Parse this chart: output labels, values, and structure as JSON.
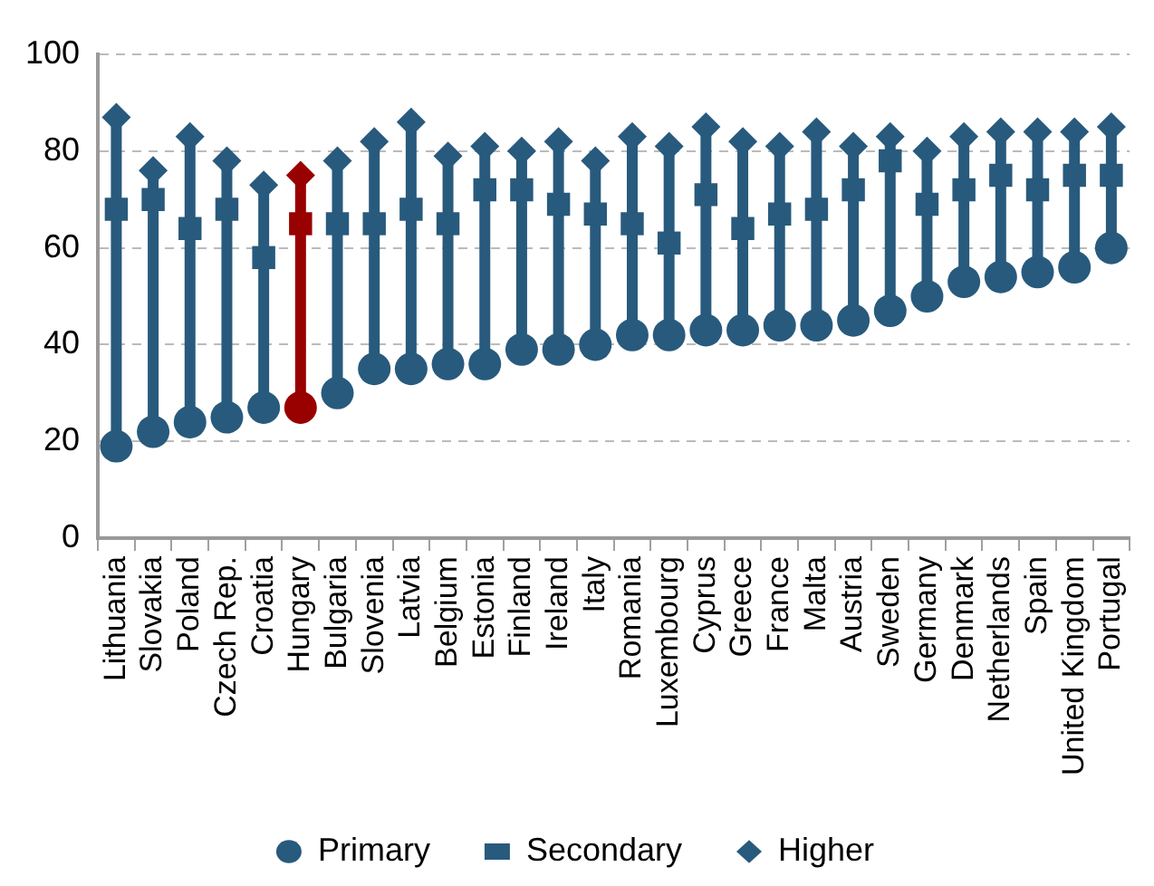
{
  "chart_data": {
    "type": "scatter",
    "categories": [
      "Lithuania",
      "Slovakia",
      "Poland",
      "Czech Rep.",
      "Croatia",
      "Hungary",
      "Bulgaria",
      "Slovenia",
      "Latvia",
      "Belgium",
      "Estonia",
      "Finland",
      "Ireland",
      "Italy",
      "Romania",
      "Luxembourg",
      "Cyprus",
      "Greece",
      "France",
      "Malta",
      "Austria",
      "Sweden",
      "Germany",
      "Denmark",
      "Netherlands",
      "Spain",
      "United Kingdom",
      "Portugal"
    ],
    "series": [
      {
        "name": "Primary",
        "marker": "circle",
        "color": "#285a7d",
        "colors": [
          "#285a7d",
          "#285a7d",
          "#285a7d",
          "#285a7d",
          "#285a7d",
          "#990000",
          "#285a7d",
          "#285a7d",
          "#285a7d",
          "#285a7d",
          "#285a7d",
          "#285a7d",
          "#285a7d",
          "#285a7d",
          "#285a7d",
          "#285a7d",
          "#285a7d",
          "#285a7d",
          "#285a7d",
          "#285a7d",
          "#285a7d",
          "#285a7d",
          "#285a7d",
          "#285a7d",
          "#285a7d",
          "#285a7d",
          "#285a7d",
          "#285a7d"
        ],
        "values": [
          19,
          22,
          24,
          25,
          27,
          27,
          30,
          35,
          35,
          36,
          36,
          39,
          39,
          40,
          42,
          42,
          43,
          43,
          44,
          44,
          45,
          47,
          50,
          53,
          54,
          55,
          56,
          60
        ]
      },
      {
        "name": "Secondary",
        "marker": "square",
        "color": "#285a7d",
        "colors": [
          "#285a7d",
          "#285a7d",
          "#285a7d",
          "#285a7d",
          "#285a7d",
          "#990000",
          "#285a7d",
          "#285a7d",
          "#285a7d",
          "#285a7d",
          "#285a7d",
          "#285a7d",
          "#285a7d",
          "#285a7d",
          "#285a7d",
          "#285a7d",
          "#285a7d",
          "#285a7d",
          "#285a7d",
          "#285a7d",
          "#285a7d",
          "#285a7d",
          "#285a7d",
          "#285a7d",
          "#285a7d",
          "#285a7d",
          "#285a7d",
          "#285a7d"
        ],
        "values": [
          68,
          70,
          64,
          68,
          58,
          65,
          65,
          65,
          68,
          65,
          72,
          72,
          69,
          67,
          65,
          61,
          71,
          64,
          67,
          68,
          72,
          78,
          69,
          72,
          75,
          72,
          75,
          75
        ]
      },
      {
        "name": "Higher",
        "marker": "diamond",
        "color": "#285a7d",
        "colors": [
          "#285a7d",
          "#285a7d",
          "#285a7d",
          "#285a7d",
          "#285a7d",
          "#990000",
          "#285a7d",
          "#285a7d",
          "#285a7d",
          "#285a7d",
          "#285a7d",
          "#285a7d",
          "#285a7d",
          "#285a7d",
          "#285a7d",
          "#285a7d",
          "#285a7d",
          "#285a7d",
          "#285a7d",
          "#285a7d",
          "#285a7d",
          "#285a7d",
          "#285a7d",
          "#285a7d",
          "#285a7d",
          "#285a7d",
          "#285a7d",
          "#285a7d"
        ],
        "values": [
          87,
          76,
          83,
          78,
          73,
          75,
          78,
          82,
          86,
          79,
          81,
          80,
          82,
          78,
          83,
          81,
          85,
          82,
          81,
          84,
          81,
          83,
          80,
          83,
          84,
          84,
          84,
          85
        ]
      }
    ],
    "ylim": [
      0,
      100
    ],
    "yticks": [
      0,
      20,
      40,
      60,
      80,
      100
    ],
    "grid": "y",
    "legend": "bottom"
  }
}
